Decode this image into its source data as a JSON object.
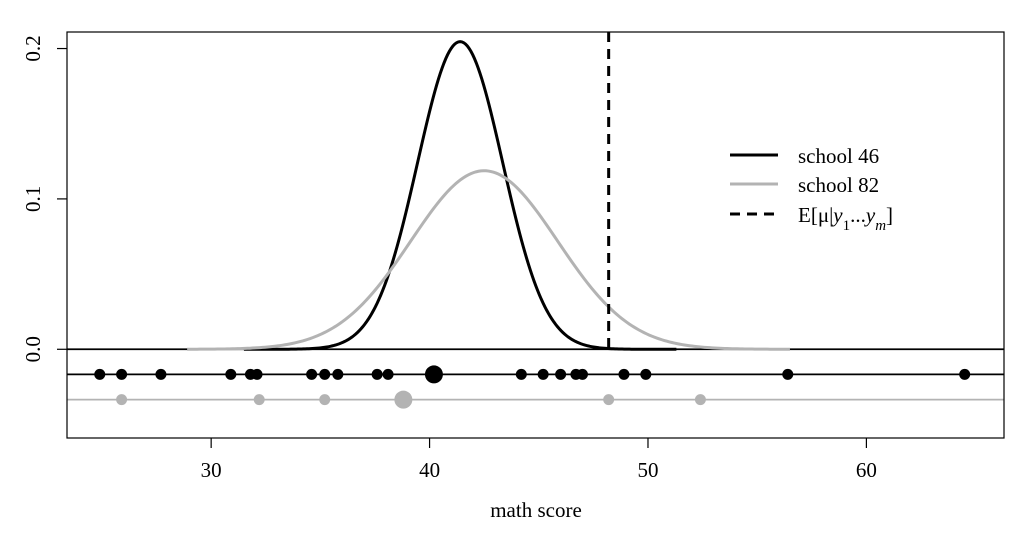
{
  "chart_data": {
    "type": "line",
    "title": "",
    "xlabel": "math score",
    "ylabel": "",
    "xlim": [
      23.4,
      66.3
    ],
    "ylim": [
      -0.059,
      0.211
    ],
    "x_ticks": [
      30,
      40,
      50,
      60
    ],
    "x_tick_labels": [
      "30",
      "40",
      "50",
      "60"
    ],
    "y_ticks": [
      0.0,
      0.1,
      0.2
    ],
    "y_tick_labels": [
      "0.0",
      "0.1",
      "0.2"
    ],
    "grid": false,
    "legend_position": "right",
    "series": [
      {
        "name": "school 46",
        "type": "normal-density",
        "color": "#000000",
        "mean": 41.4,
        "sd": 1.95,
        "x_range": [
          31.5,
          51.3
        ]
      },
      {
        "name": "school 82",
        "type": "normal-density",
        "color": "#b3b3b3",
        "mean": 42.5,
        "sd": 3.36,
        "x_range": [
          28.9,
          56.5
        ]
      }
    ],
    "reference_line": {
      "name": "E[μ|y₁...yₘ]",
      "x": 48.2,
      "style": "dashed",
      "color": "#000000"
    },
    "points": [
      {
        "series": "school 46",
        "y_level": -0.0167,
        "color": "#000000",
        "x": [
          24.9,
          25.9,
          27.7,
          30.9,
          31.8,
          32.1,
          34.6,
          35.2,
          35.8,
          37.6,
          38.1,
          44.2,
          45.2,
          46.0,
          46.7,
          47.0,
          48.9,
          49.9,
          56.4,
          64.5
        ],
        "mean_marker": 40.2
      },
      {
        "series": "school 82",
        "y_level": -0.0335,
        "color": "#b3b3b3",
        "x": [
          25.9,
          32.2,
          35.2,
          48.2,
          52.4
        ],
        "mean_marker": 38.8
      }
    ],
    "horizontal_lines": [
      {
        "y": 0.0,
        "color": "#000000"
      },
      {
        "y": -0.0167,
        "color": "#000000"
      },
      {
        "y": -0.0335,
        "color": "#b3b3b3"
      }
    ],
    "legend": [
      {
        "label": "school 46",
        "color": "#000000",
        "style": "solid"
      },
      {
        "label": "school 82",
        "color": "#b3b3b3",
        "style": "solid"
      },
      {
        "label_main": "E[μ|",
        "label_math_1": "y",
        "label_sub_1": "1",
        "label_dots": "...",
        "label_math_2": "y",
        "label_sub_2": "m",
        "label_end": "]",
        "color": "#000000",
        "style": "dashed"
      }
    ]
  }
}
